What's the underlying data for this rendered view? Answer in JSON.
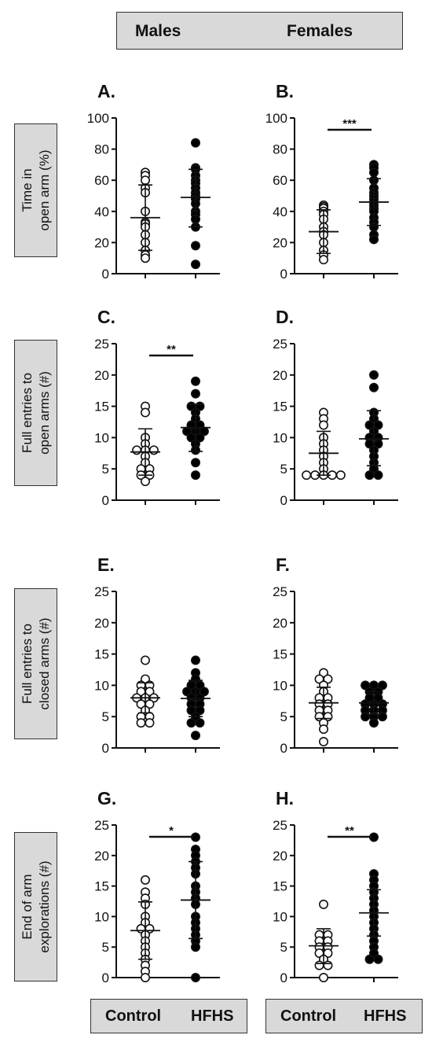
{
  "header": {
    "males": "Males",
    "females": "Females"
  },
  "row_labels": [
    [
      "Time in",
      "open arm (%)"
    ],
    [
      "Full entries to",
      "open arms (#)"
    ],
    [
      "Full entries to",
      "closed arms (#)"
    ],
    [
      "End of arm",
      "explorations (#)"
    ]
  ],
  "footer": {
    "control": "Control",
    "hfhs": "HFHS"
  },
  "colors": {
    "box": "#d9d9d9",
    "control_fill": "#ffffff",
    "hfhs_fill": "#000000"
  },
  "chart_data": [
    {
      "panel": "A.",
      "type": "scatter",
      "ylim": [
        0,
        100
      ],
      "yticks": [
        0,
        20,
        40,
        60,
        80,
        100
      ],
      "sig": "",
      "control": {
        "values": [
          65,
          63,
          60,
          55,
          52,
          40,
          33,
          32,
          30,
          25,
          20,
          15,
          12,
          10
        ],
        "mean": 36,
        "sd_lo": 15,
        "sd_hi": 57
      },
      "hfhs": {
        "values": [
          84,
          68,
          67,
          63,
          60,
          58,
          55,
          52,
          50,
          48,
          45,
          40,
          38,
          35,
          30,
          18,
          6
        ],
        "mean": 49,
        "sd_lo": 30,
        "sd_hi": 67
      }
    },
    {
      "panel": "B.",
      "type": "scatter",
      "ylim": [
        0,
        100
      ],
      "yticks": [
        0,
        20,
        40,
        60,
        80,
        100
      ],
      "sig": "***",
      "control": {
        "values": [
          44,
          43,
          42,
          40,
          38,
          35,
          30,
          27,
          25,
          20,
          15,
          12,
          9
        ],
        "mean": 27,
        "sd_lo": 13,
        "sd_hi": 41
      },
      "hfhs": {
        "values": [
          70,
          68,
          65,
          60,
          55,
          52,
          50,
          48,
          46,
          44,
          42,
          40,
          36,
          33,
          30,
          25,
          22
        ],
        "mean": 46,
        "sd_lo": 31,
        "sd_hi": 61
      }
    },
    {
      "panel": "C.",
      "type": "scatter",
      "ylim": [
        0,
        25
      ],
      "yticks": [
        0,
        5,
        10,
        15,
        20,
        25
      ],
      "sig": "**",
      "control": {
        "values": [
          15,
          14,
          10,
          9,
          8,
          8,
          8,
          7,
          6,
          5,
          5,
          4,
          4,
          3
        ],
        "mean": 7.7,
        "sd_lo": 4,
        "sd_hi": 11.4
      },
      "hfhs": {
        "values": [
          19,
          17,
          15,
          15,
          14,
          13,
          12,
          12,
          11,
          11,
          11,
          10,
          10,
          9,
          8,
          6,
          4
        ],
        "mean": 11.6,
        "sd_lo": 7.8,
        "sd_hi": 15.3
      }
    },
    {
      "panel": "D.",
      "type": "scatter",
      "ylim": [
        0,
        25
      ],
      "yticks": [
        0,
        5,
        10,
        15,
        20,
        25
      ],
      "sig": "",
      "control": {
        "values": [
          14,
          13,
          12,
          10,
          9,
          8,
          7,
          6,
          5,
          4,
          4,
          4,
          4,
          4
        ],
        "mean": 7.5,
        "sd_lo": 4,
        "sd_hi": 11
      },
      "hfhs": {
        "values": [
          20,
          18,
          14,
          13,
          12,
          12,
          11,
          10,
          10,
          9,
          9,
          8,
          7,
          6,
          5,
          4,
          4
        ],
        "mean": 9.8,
        "sd_lo": 5.5,
        "sd_hi": 14.3
      }
    },
    {
      "panel": "E.",
      "type": "scatter",
      "ylim": [
        0,
        25
      ],
      "yticks": [
        0,
        5,
        10,
        15,
        20,
        25
      ],
      "sig": "",
      "control": {
        "values": [
          14,
          11,
          10,
          10,
          9,
          9,
          8,
          8,
          8,
          7,
          7,
          6,
          5,
          5,
          4,
          4
        ],
        "mean": 8,
        "sd_lo": 5.6,
        "sd_hi": 10.4
      },
      "hfhs": {
        "values": [
          14,
          12,
          11,
          10,
          10,
          9,
          9,
          9,
          8,
          8,
          7,
          7,
          6,
          6,
          5,
          4,
          4,
          2
        ],
        "mean": 7.9,
        "sd_lo": 5,
        "sd_hi": 10.8
      }
    },
    {
      "panel": "F.",
      "type": "scatter",
      "ylim": [
        0,
        25
      ],
      "yticks": [
        0,
        5,
        10,
        15,
        20,
        25
      ],
      "sig": "",
      "control": {
        "values": [
          12,
          11,
          11,
          10,
          9,
          8,
          8,
          7,
          7,
          6,
          6,
          5,
          5,
          4,
          3,
          1
        ],
        "mean": 7.2,
        "sd_lo": 4.7,
        "sd_hi": 9.7
      },
      "hfhs": {
        "values": [
          10,
          10,
          10,
          9,
          9,
          8,
          8,
          7,
          7,
          7,
          6,
          6,
          6,
          5,
          5,
          5,
          4
        ],
        "mean": 7.2,
        "sd_lo": 5.4,
        "sd_hi": 9
      }
    },
    {
      "panel": "G.",
      "type": "scatter",
      "ylim": [
        0,
        25
      ],
      "yticks": [
        0,
        5,
        10,
        15,
        20,
        25
      ],
      "sig": "*",
      "control": {
        "values": [
          16,
          14,
          13,
          12,
          10,
          9,
          8,
          8,
          7,
          6,
          5,
          4,
          3,
          2,
          1,
          0
        ],
        "mean": 7.7,
        "sd_lo": 3,
        "sd_hi": 12.4
      },
      "hfhs": {
        "values": [
          23,
          21,
          20,
          19,
          18,
          17,
          15,
          14,
          13,
          12,
          10,
          9,
          8,
          7,
          6,
          5,
          0
        ],
        "mean": 12.7,
        "sd_lo": 6.4,
        "sd_hi": 19
      }
    },
    {
      "panel": "H.",
      "type": "scatter",
      "ylim": [
        0,
        25
      ],
      "yticks": [
        0,
        5,
        10,
        15,
        20,
        25
      ],
      "sig": "**",
      "control": {
        "values": [
          12,
          7,
          7,
          6,
          6,
          5,
          5,
          4,
          4,
          3,
          2,
          2,
          0
        ],
        "mean": 5.2,
        "sd_lo": 2.3,
        "sd_hi": 8
      },
      "hfhs": {
        "values": [
          23,
          17,
          16,
          15,
          14,
          13,
          12,
          11,
          10,
          9,
          8,
          7,
          6,
          5,
          4,
          3,
          3
        ],
        "mean": 10.6,
        "sd_lo": 6.8,
        "sd_hi": 14.4
      }
    }
  ]
}
